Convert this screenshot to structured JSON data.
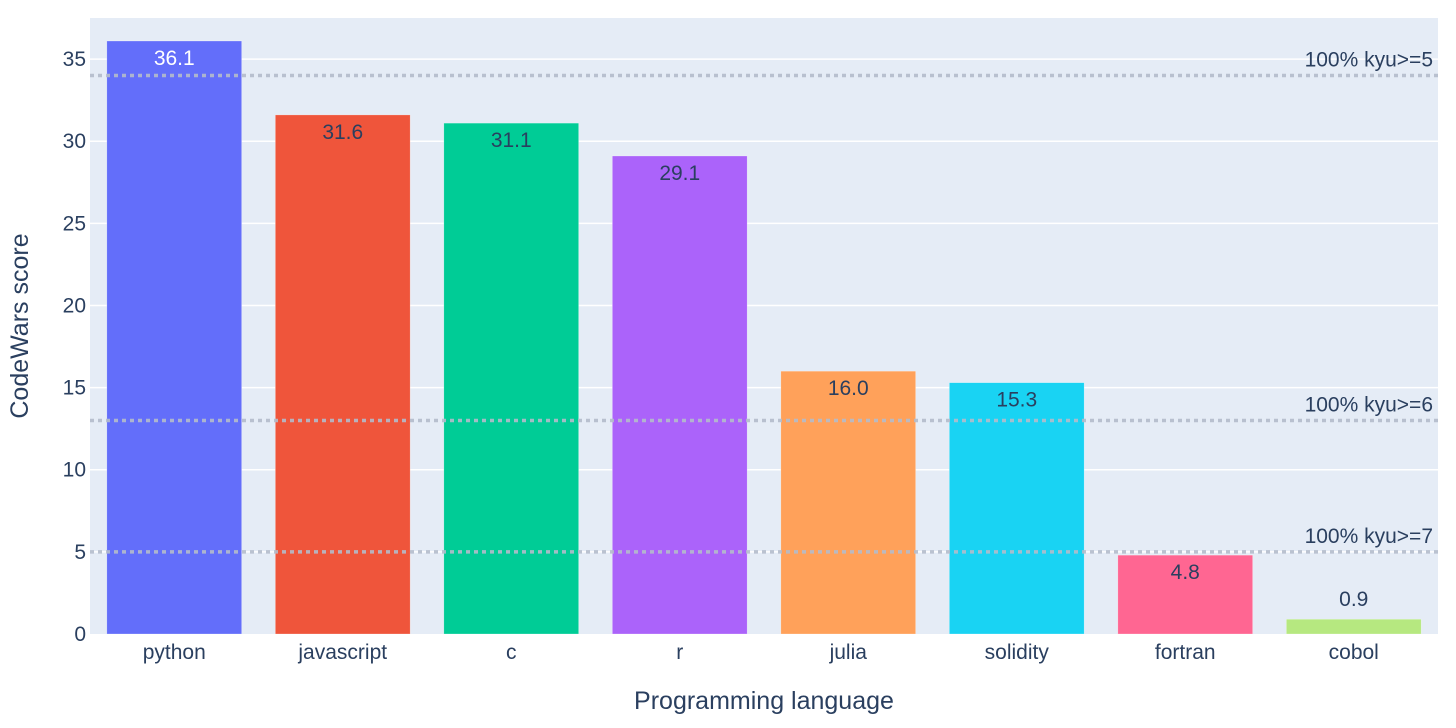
{
  "chart_data": {
    "type": "bar",
    "title": "",
    "xlabel": "Programming language",
    "ylabel": "CodeWars score",
    "ylim": [
      0,
      37.5
    ],
    "yticks": [
      0,
      5,
      10,
      15,
      20,
      25,
      30,
      35
    ],
    "grid": true,
    "legend": "none",
    "categories": [
      "python",
      "javascript",
      "c",
      "r",
      "julia",
      "solidity",
      "fortran",
      "cobol"
    ],
    "values": [
      36.1,
      31.6,
      31.1,
      29.1,
      16.0,
      15.3,
      4.8,
      0.9
    ],
    "value_labels": [
      "36.1",
      "31.6",
      "31.1",
      "29.1",
      "16.0",
      "15.3",
      "4.8",
      "0.9"
    ],
    "colors": [
      "#636efa",
      "#ef553b",
      "#00cc96",
      "#ab63fa",
      "#ffa15a",
      "#19d3f3",
      "#ff6692",
      "#b6e880"
    ],
    "label_colors": [
      "#ffffff",
      "#2a3f5f",
      "#2a3f5f",
      "#2a3f5f",
      "#2a3f5f",
      "#2a3f5f",
      "#2a3f5f",
      "#2a3f5f"
    ],
    "reference_lines": [
      {
        "y": 34,
        "label": "100% kyu>=5"
      },
      {
        "y": 13,
        "label": "100% kyu>=6"
      },
      {
        "y": 5,
        "label": "100% kyu>=7"
      }
    ],
    "plot_background": "#e5ecf6",
    "gridline_color": "#ffffff",
    "reference_line_color": "#b4bccb"
  }
}
